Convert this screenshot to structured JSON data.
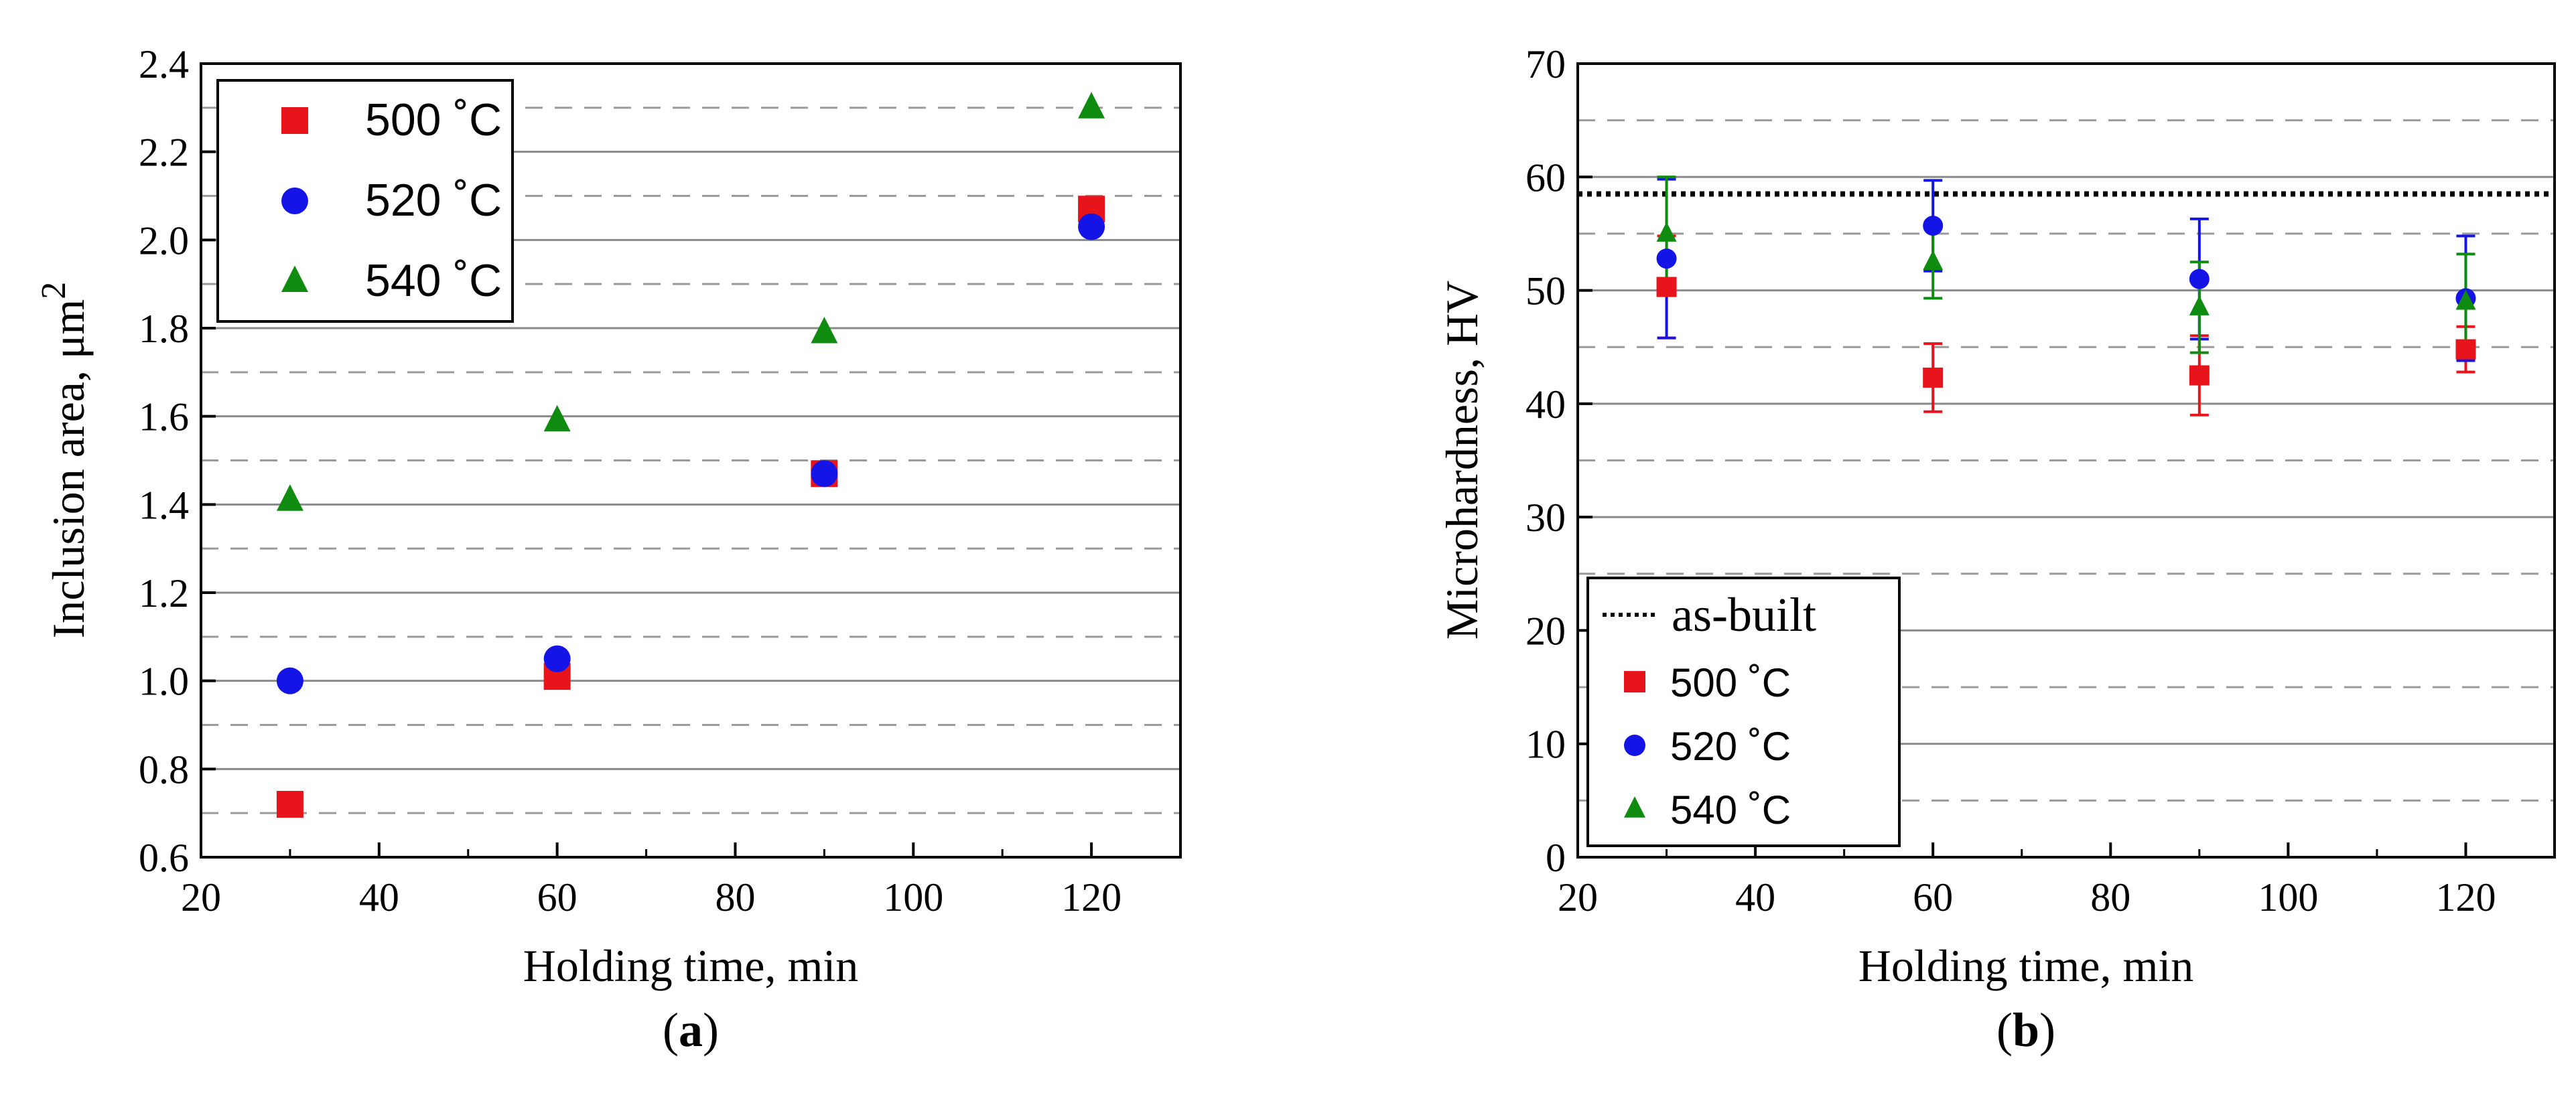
{
  "chart_data": [
    {
      "type": "scatter",
      "panel_label": "a",
      "xlabel": "Holding time, min",
      "ylabel_main": "Inclusion area, μm",
      "ylabel_sup": "2",
      "xlim": [
        20,
        130
      ],
      "ylim": [
        0.6,
        2.4
      ],
      "xticks": [
        20,
        40,
        60,
        80,
        100,
        120
      ],
      "xtick_labels": [
        "20",
        "40",
        "60",
        "80",
        "100",
        "120"
      ],
      "yticks": [
        0.6,
        0.8,
        1.0,
        1.2,
        1.4,
        1.6,
        1.8,
        2.0,
        2.2,
        2.4
      ],
      "ytick_labels": [
        "0.6",
        "0.8",
        "1.0",
        "1.2",
        "1.4",
        "1.6",
        "1.8",
        "2.0",
        "2.2",
        "2.4"
      ],
      "grid_solid": [
        0.8,
        1.0,
        1.2,
        1.4,
        1.6,
        1.8,
        2.0,
        2.2
      ],
      "grid_dashed": [
        0.7,
        0.9,
        1.1,
        1.3,
        1.5,
        1.7,
        1.9,
        2.1,
        2.3
      ],
      "legend_placement": "top-left",
      "series": [
        {
          "name": "500 ˚C",
          "marker": "square",
          "color": "#e8141c",
          "x": [
            30,
            60,
            90,
            120
          ],
          "y": [
            0.72,
            1.01,
            1.47,
            2.07
          ]
        },
        {
          "name": "520 ˚C",
          "marker": "circle",
          "color": "#1414e6",
          "x": [
            30,
            60,
            90,
            120
          ],
          "y": [
            1.0,
            1.05,
            1.47,
            2.03
          ]
        },
        {
          "name": "540 ˚C",
          "marker": "triangle",
          "color": "#0f8c0f",
          "x": [
            30,
            60,
            90,
            120
          ],
          "y": [
            1.41,
            1.59,
            1.79,
            2.3
          ]
        }
      ]
    },
    {
      "type": "scatter",
      "panel_label": "b",
      "xlabel": "Holding time, min",
      "ylabel_main": "Microhardness, HV",
      "ylabel_sup": "",
      "xlim": [
        20,
        130
      ],
      "ylim": [
        0,
        70
      ],
      "xticks": [
        20,
        40,
        60,
        80,
        100,
        120
      ],
      "xtick_labels": [
        "20",
        "40",
        "60",
        "80",
        "100",
        "120"
      ],
      "yticks": [
        0,
        10,
        20,
        30,
        40,
        50,
        60,
        70
      ],
      "ytick_labels": [
        "0",
        "10",
        "20",
        "30",
        "40",
        "50",
        "60",
        "70"
      ],
      "grid_solid": [
        10,
        20,
        30,
        40,
        50,
        60
      ],
      "grid_dashed": [
        5,
        15,
        25,
        35,
        45,
        55,
        65
      ],
      "reference_line": {
        "name": "as-built",
        "y": 58.5
      },
      "legend_placement": "bottom-left",
      "series": [
        {
          "name": "500 ˚C",
          "marker": "square",
          "color": "#e8141c",
          "x": [
            30,
            60,
            90,
            120
          ],
          "y": [
            50.3,
            42.3,
            42.5,
            44.8
          ],
          "yerr": [
            4.5,
            3.0,
            3.5,
            2.0
          ]
        },
        {
          "name": "520 ˚C",
          "marker": "circle",
          "color": "#1414e6",
          "x": [
            30,
            60,
            90,
            120
          ],
          "y": [
            52.8,
            55.7,
            51.0,
            49.3
          ],
          "yerr": [
            7.0,
            4.0,
            5.3,
            5.5
          ]
        },
        {
          "name": "540 ˚C",
          "marker": "triangle",
          "color": "#0f8c0f",
          "x": [
            30,
            60,
            90,
            120
          ],
          "y": [
            55.0,
            52.5,
            48.5,
            49.0
          ],
          "yerr": [
            5.0,
            3.2,
            4.0,
            4.2
          ]
        }
      ]
    }
  ]
}
